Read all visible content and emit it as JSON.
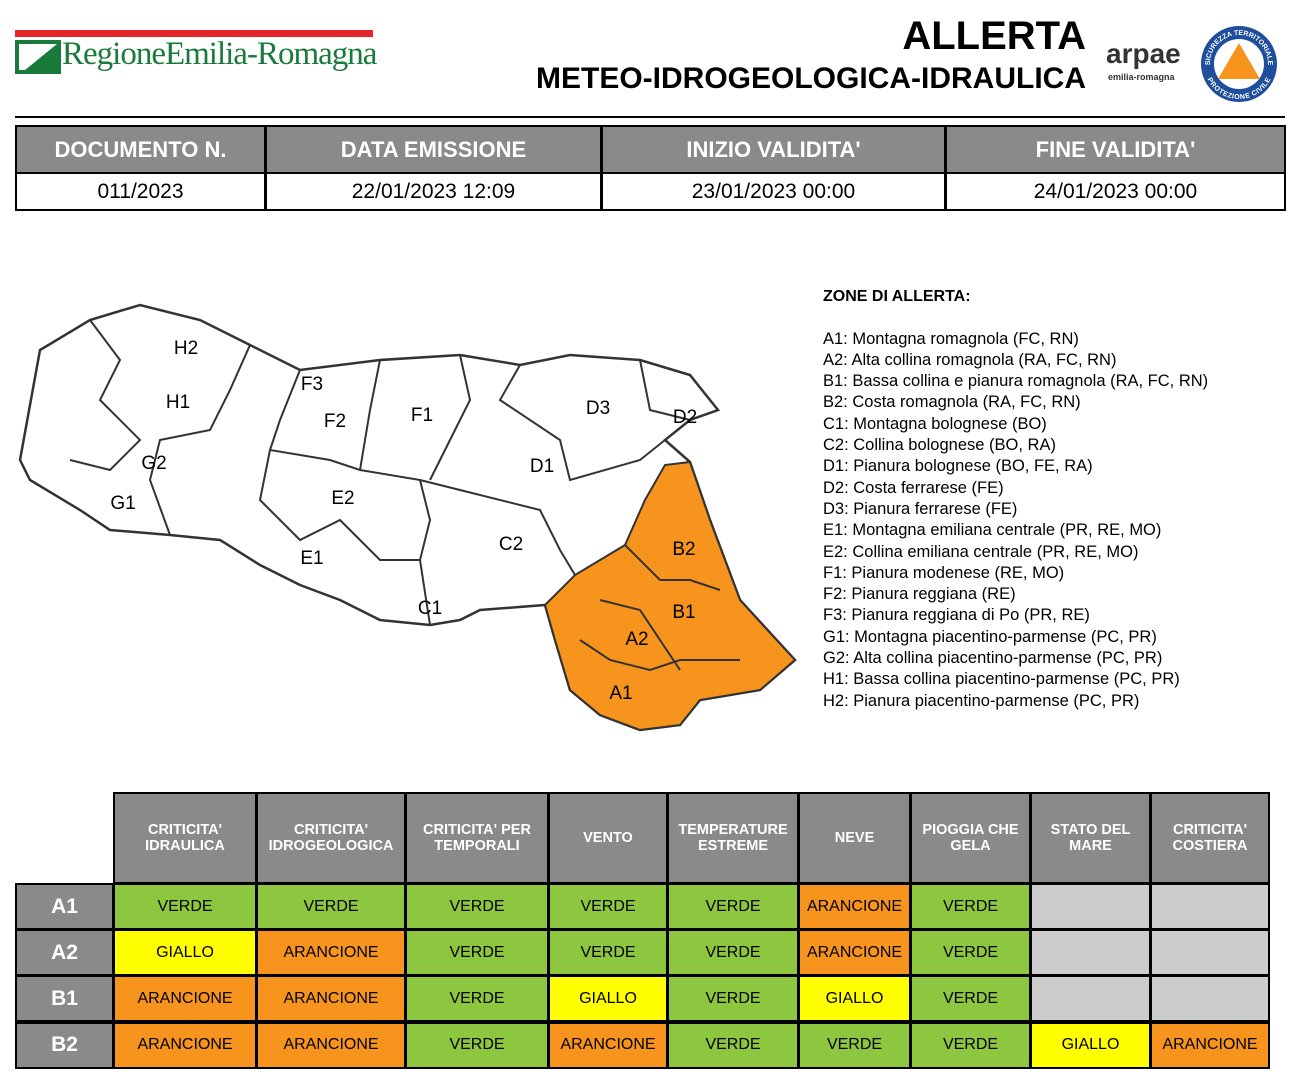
{
  "header": {
    "logo": "RegioneEmilia-Romagna",
    "title": "ALLERTA",
    "subtitle": "METEO-IDROGEOLOGICA-IDRAULICA",
    "arpae": "arpae",
    "arpae_sub": "emilia-romagna",
    "pc_top": "SICUREZZA TERRITORIALE",
    "pc_bottom": "PROTEZIONE CIVILE"
  },
  "doc_table": {
    "headers": [
      "DOCUMENTO N.",
      "DATA EMISSIONE",
      "INIZIO VALIDITA'",
      "FINE VALIDITA'"
    ],
    "values": [
      "011/2023",
      "22/01/2023 12:09",
      "23/01/2023 00:00",
      "24/01/2023 00:00"
    ]
  },
  "map": {
    "labels": [
      "H2",
      "H1",
      "G2",
      "G1",
      "F3",
      "F2",
      "F1",
      "E2",
      "E1",
      "C2",
      "C1",
      "D1",
      "D3",
      "D2",
      "B2",
      "B1",
      "A2",
      "A1"
    ]
  },
  "legend": {
    "title": "ZONE DI ALLERTA:",
    "items": [
      "A1: Montagna romagnola (FC, RN)",
      "A2: Alta collina romagnola (RA, FC, RN)",
      "B1: Bassa collina e pianura romagnola (RA, FC, RN)",
      "B2: Costa romagnola (RA, FC, RN)",
      "C1: Montagna bolognese (BO)",
      "C2: Collina bolognese (BO, RA)",
      "D1: Pianura bolognese (BO, FE, RA)",
      "D2: Costa ferrarese (FE)",
      "D3: Pianura ferrarese (FE)",
      "E1: Montagna emiliana centrale (PR, RE, MO)",
      "E2: Collina emiliana centrale (PR, RE, MO)",
      "F1: Pianura modenese (RE, MO)",
      "F2: Pianura reggiana (RE)",
      "F3: Pianura reggiana di Po (PR, RE)",
      "G1: Montagna piacentino-parmense (PC, PR)",
      "G2: Alta collina piacentino-parmense (PC, PR)",
      "H1: Bassa collina piacentino-parmense (PC, PR)",
      "H2: Pianura piacentino-parmense (PC, PR)"
    ]
  },
  "alert_table": {
    "headers": [
      "CRITICITA' IDRAULICA",
      "CRITICITA' IDROGEOLOGICA",
      "CRITICITA' PER TEMPORALI",
      "VENTO",
      "TEMPERATURE ESTREME",
      "NEVE",
      "PIOGGIA CHE GELA",
      "STATO DEL MARE",
      "CRITICITA' COSTIERA"
    ],
    "rows": [
      {
        "zone": "A1",
        "levels": [
          "VERDE",
          "VERDE",
          "VERDE",
          "VERDE",
          "VERDE",
          "ARANCIONE",
          "VERDE",
          null,
          null
        ]
      },
      {
        "zone": "A2",
        "levels": [
          "GIALLO",
          "ARANCIONE",
          "VERDE",
          "VERDE",
          "VERDE",
          "ARANCIONE",
          "VERDE",
          null,
          null
        ]
      },
      {
        "zone": "B1",
        "levels": [
          "ARANCIONE",
          "ARANCIONE",
          "VERDE",
          "GIALLO",
          "VERDE",
          "GIALLO",
          "VERDE",
          null,
          null
        ]
      },
      {
        "zone": "B2",
        "levels": [
          "ARANCIONE",
          "ARANCIONE",
          "VERDE",
          "ARANCIONE",
          "VERDE",
          "VERDE",
          "VERDE",
          "GIALLO",
          "ARANCIONE"
        ]
      }
    ],
    "level_colors": {
      "VERDE": "#8dc63f",
      "GIALLO": "#ffff00",
      "ARANCIONE": "#f7941d"
    }
  }
}
